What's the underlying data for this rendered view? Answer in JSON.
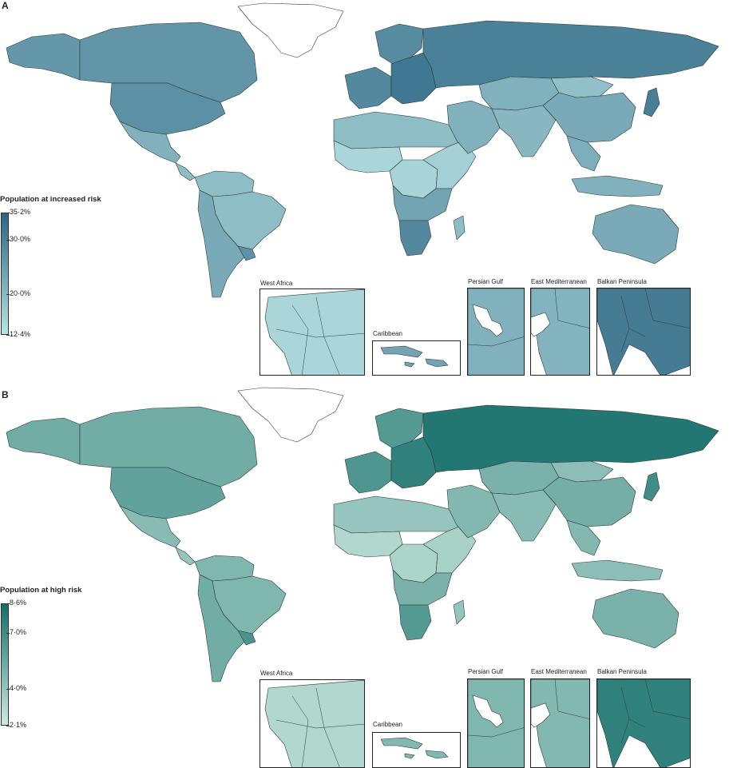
{
  "panels": [
    {
      "id": "A",
      "label": "A",
      "legend_title": "Population at increased risk",
      "legend_ticks": [
        "35·2%",
        "30·0%",
        "20·0%",
        "12·4%"
      ],
      "legend_tick_values": [
        35.2,
        30.0,
        20.0,
        12.4
      ],
      "legend_range": [
        12.4,
        35.2
      ],
      "colors": {
        "low": "#b9e3e3",
        "high": "#2c6583"
      },
      "region_levels": {
        "greenland": 0,
        "canada": 0.62,
        "alaska": 0.6,
        "usa": 0.66,
        "mexico": 0.4,
        "central_america": 0.3,
        "south_america_north": 0.3,
        "brazil": 0.3,
        "south_america_south": 0.45,
        "uruguay": 0.65,
        "north_africa": 0.3,
        "west_africa": 0.1,
        "central_africa": 0.12,
        "east_africa": 0.15,
        "southern_africa": 0.5,
        "south_africa": 0.72,
        "madagascar": 0.3,
        "western_europe": 0.72,
        "eastern_europe": 0.85,
        "scandinavia": 0.7,
        "russia": 0.78,
        "middle_east": 0.4,
        "central_asia": 0.4,
        "south_asia": 0.35,
        "china": 0.45,
        "mongolia": 0.28,
        "southeast_asia": 0.42,
        "japan": 0.8,
        "indonesia": 0.4,
        "australia": 0.45
      },
      "insets": [
        {
          "title": "West Africa",
          "level": 0.1
        },
        {
          "title": "Caribbean",
          "level": 0.5
        },
        {
          "title": "Persian Gulf",
          "level": 0.4
        },
        {
          "title": "East Mediterranean",
          "level": 0.38
        },
        {
          "title": "Balkan Peninsula",
          "level": 0.82
        }
      ]
    },
    {
      "id": "B",
      "label": "B",
      "legend_title": "Population at high risk",
      "legend_ticks": [
        "8·6%",
        "7·0%",
        "4·0%",
        "2·1%"
      ],
      "legend_tick_values": [
        8.6,
        7.0,
        4.0,
        2.1
      ],
      "legend_range": [
        2.1,
        8.6
      ],
      "colors": {
        "low": "#cdeae0",
        "high": "#146d6a"
      },
      "region_levels": {
        "greenland": 0,
        "canada": 0.5,
        "alaska": 0.5,
        "usa": 0.58,
        "mexico": 0.38,
        "central_america": 0.3,
        "south_america_north": 0.42,
        "brazil": 0.42,
        "south_america_south": 0.5,
        "uruguay": 0.7,
        "north_africa": 0.3,
        "west_africa": 0.15,
        "central_africa": 0.18,
        "east_africa": 0.2,
        "southern_africa": 0.45,
        "south_africa": 0.65,
        "madagascar": 0.3,
        "western_europe": 0.68,
        "eastern_europe": 0.85,
        "scandinavia": 0.65,
        "russia": 0.92,
        "middle_east": 0.4,
        "central_asia": 0.45,
        "south_asia": 0.38,
        "china": 0.48,
        "mongolia": 0.35,
        "southeast_asia": 0.4,
        "japan": 0.75,
        "indonesia": 0.35,
        "australia": 0.45
      },
      "insets": [
        {
          "title": "West Africa",
          "level": 0.15
        },
        {
          "title": "Caribbean",
          "level": 0.4
        },
        {
          "title": "Persian Gulf",
          "level": 0.42
        },
        {
          "title": "East Mediterranean",
          "level": 0.4
        },
        {
          "title": "Balkan Peninsula",
          "level": 0.85
        }
      ]
    }
  ]
}
